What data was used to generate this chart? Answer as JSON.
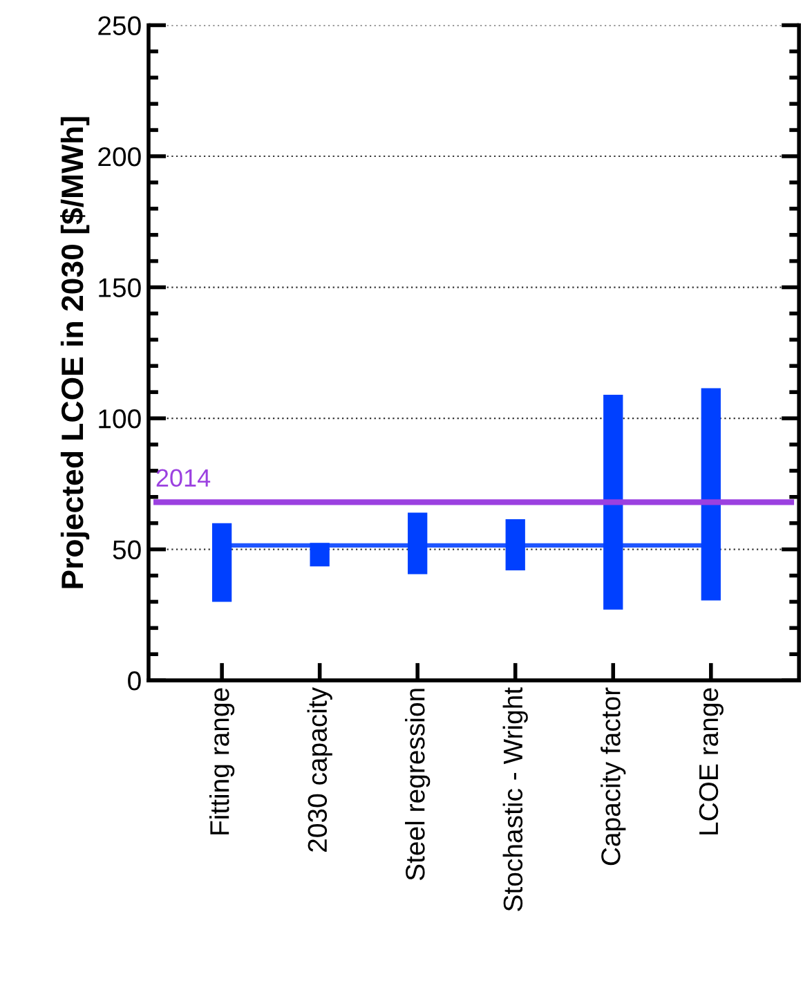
{
  "chart_data": {
    "type": "bar",
    "ylabel": "Projected LCOE in 2030 [$/MWh]",
    "categories": [
      "Fitting range",
      "2030 capacity",
      "Steel regression",
      "Stochastic - Wright",
      "Capacity factor",
      "LCOE range"
    ],
    "base": [
      30,
      43.5,
      40.5,
      42,
      27,
      30.5
    ],
    "values": [
      30,
      9,
      23.5,
      19.5,
      82,
      81
    ],
    "color": "#0040ff",
    "ylim": [
      0,
      250
    ],
    "yticks": [
      0,
      50,
      100,
      150,
      200,
      250
    ],
    "grid": "y",
    "ref_lines": [
      {
        "axis": "y",
        "value": 51.5,
        "color": "#1f55ff"
      },
      {
        "axis": "y",
        "value": 68,
        "color": "#9b40e0",
        "line_style": "solid"
      }
    ],
    "annotations": [
      {
        "text": "2014",
        "y": 68
      }
    ]
  }
}
